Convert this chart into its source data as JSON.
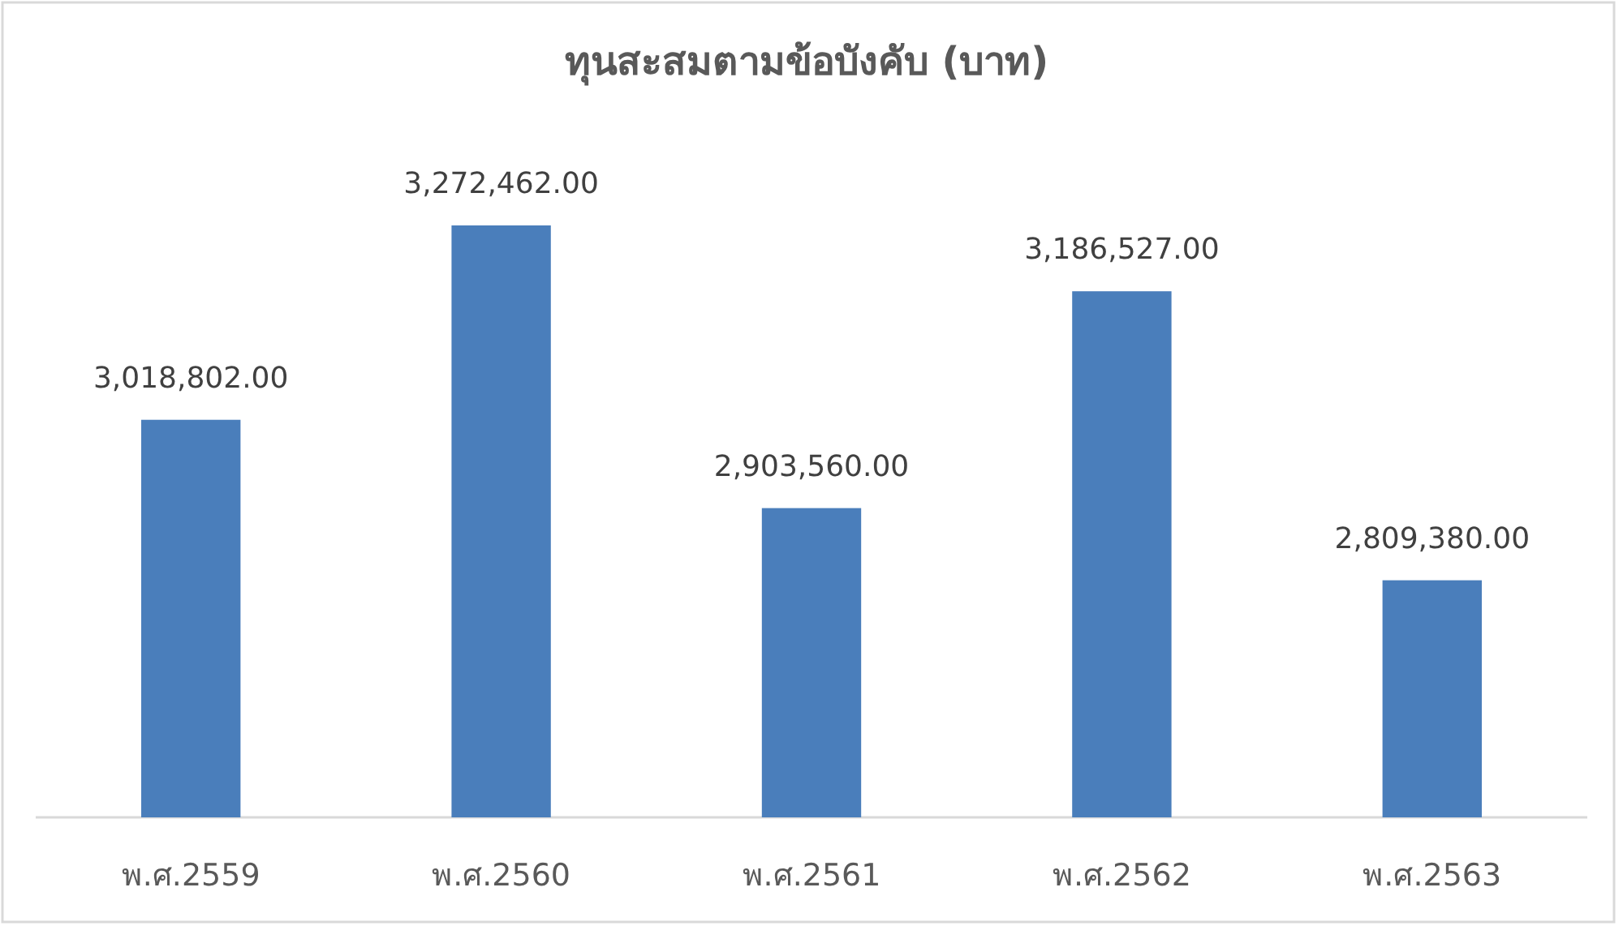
{
  "chart_data": {
    "type": "bar",
    "title": "ทุนสะสมตามข้อบังคับ (บาท)",
    "categories": [
      "พ.ศ.2559",
      "พ.ศ.2560",
      "พ.ศ.2561",
      "พ.ศ.2562",
      "พ.ศ.2563"
    ],
    "values": [
      3018802,
      3272462,
      2903560,
      3186527,
      2809380
    ],
    "value_labels": [
      "3,018,802.00",
      "3,272,462.00",
      "2,903,560.00",
      "3,186,527.00",
      "2,809,380.00"
    ],
    "color": "#4a7ebb",
    "ylim": [
      2500000,
      3272462
    ]
  }
}
